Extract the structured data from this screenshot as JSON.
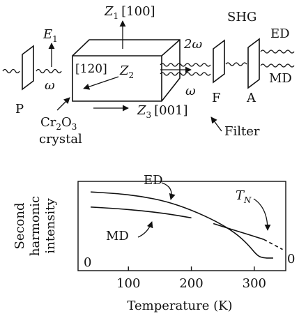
{
  "setup": {
    "wave_out_left": "~",
    "polarizer_label": "P",
    "e1_label": "E",
    "e1_sub": "1",
    "omega_in": "ω",
    "z1_label": "Z",
    "z1_sub": "1",
    "z1_dir": "[100]",
    "z2_dir": "[120]",
    "z2_label": "Z",
    "z2_sub": "2",
    "z3_label": "Z",
    "z3_sub": "3",
    "z3_dir": "[001]",
    "two_omega": "2ω",
    "omega_out": "ω",
    "crystal_formula_a": "Cr",
    "crystal_sub_a": "2",
    "crystal_formula_b": "O",
    "crystal_sub_b": "3",
    "crystal_word": "crystal",
    "shg_label": "SHG",
    "filter_label": "F",
    "analyzer_label": "A",
    "ed_label": "ED",
    "md_label": "MD",
    "filter_word": "Filter"
  },
  "chart_data": {
    "type": "line",
    "xlabel": "Temperature (K)",
    "ylabel": [
      "Second",
      "harmonic",
      "intensity"
    ],
    "xlim": [
      20,
      350
    ],
    "ylim": [
      0,
      1
    ],
    "xticks": [
      100,
      200,
      300
    ],
    "y_zero_label_left": "0",
    "y_zero_label_right": "0",
    "series": [
      {
        "name": "ED",
        "x": [
          40,
          80,
          120,
          160,
          200,
          240,
          270,
          290,
          305,
          315,
          330
        ],
        "y": [
          0.93,
          0.91,
          0.87,
          0.8,
          0.68,
          0.52,
          0.36,
          0.2,
          0.04,
          0.01,
          0.01
        ]
      },
      {
        "name": "MD",
        "x": [
          40,
          80,
          120,
          160,
          200
        ],
        "y": [
          0.72,
          0.7,
          0.67,
          0.63,
          0.57
        ]
      },
      {
        "name": "MD",
        "style": "solid",
        "x": [
          235,
          260,
          290,
          315
        ],
        "y": [
          0.49,
          0.42,
          0.34,
          0.27
        ]
      },
      {
        "name": "MD",
        "style": "dashed",
        "x": [
          315,
          330,
          345
        ],
        "y": [
          0.27,
          0.2,
          0.13
        ]
      }
    ],
    "annotations": [
      {
        "text": "ED",
        "series": "ED"
      },
      {
        "text": "MD",
        "series": "MD"
      },
      {
        "text": "T",
        "sub": "N",
        "x": 312
      }
    ]
  }
}
